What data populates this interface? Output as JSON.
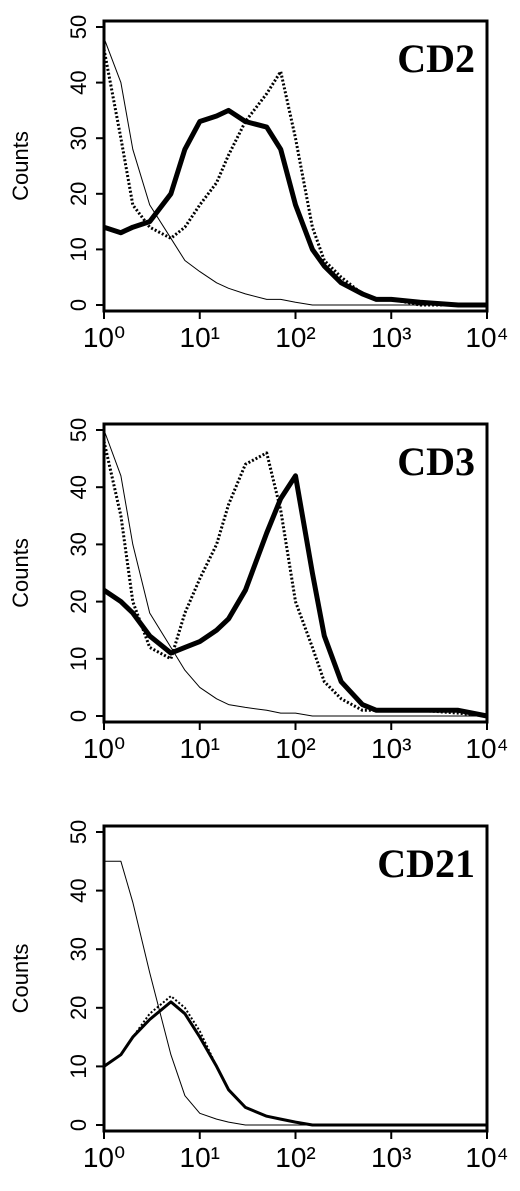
{
  "chart_data": [
    {
      "type": "line",
      "title": "CD2",
      "ylabel": "Counts",
      "xscale": "log",
      "xlim": [
        1,
        10000
      ],
      "ylim": [
        0,
        50
      ],
      "xticks": [
        {
          "value": 1,
          "label": "10⁰"
        },
        {
          "value": 10,
          "label": "10¹"
        },
        {
          "value": 100,
          "label": "10²"
        },
        {
          "value": 1000,
          "label": "10³"
        },
        {
          "value": 10000,
          "label": "10⁴"
        }
      ],
      "yticks": [
        0,
        10,
        20,
        30,
        40,
        50
      ],
      "x": [
        1,
        1.5,
        2,
        3,
        5,
        7,
        10,
        15,
        20,
        30,
        50,
        70,
        100,
        150,
        200,
        300,
        500,
        700,
        1000,
        2000,
        5000,
        10000
      ],
      "series": [
        {
          "color": "#000000",
          "linestyle": "solid",
          "linewidth": 1,
          "values": [
            48,
            40,
            28,
            18,
            12,
            8,
            6,
            4,
            3,
            2,
            1,
            1,
            0.5,
            0,
            0,
            0,
            0,
            0,
            0,
            0,
            0,
            0
          ]
        },
        {
          "color": "#000000",
          "linestyle": "solid",
          "linewidth": 5,
          "values": [
            14,
            13,
            14,
            15,
            20,
            28,
            33,
            34,
            35,
            33,
            32,
            28,
            18,
            10,
            7,
            4,
            2,
            1,
            1,
            0.5,
            0,
            0
          ]
        },
        {
          "color": "#000000",
          "linestyle": "dotted",
          "linewidth": 3,
          "values": [
            46,
            30,
            18,
            14,
            12,
            14,
            18,
            22,
            27,
            33,
            38,
            42,
            30,
            14,
            8,
            5,
            2,
            1,
            1,
            0,
            0,
            0
          ]
        }
      ]
    },
    {
      "type": "line",
      "title": "CD3",
      "ylabel": "Counts",
      "xscale": "log",
      "xlim": [
        1,
        10000
      ],
      "ylim": [
        0,
        50
      ],
      "xticks": [
        {
          "value": 1,
          "label": "10⁰"
        },
        {
          "value": 10,
          "label": "10¹"
        },
        {
          "value": 100,
          "label": "10²"
        },
        {
          "value": 1000,
          "label": "10³"
        },
        {
          "value": 10000,
          "label": "10⁴"
        }
      ],
      "yticks": [
        0,
        10,
        20,
        30,
        40,
        50
      ],
      "x": [
        1,
        1.5,
        2,
        3,
        5,
        7,
        10,
        15,
        20,
        30,
        50,
        70,
        100,
        150,
        200,
        300,
        500,
        700,
        1000,
        2000,
        5000,
        10000
      ],
      "series": [
        {
          "color": "#000000",
          "linestyle": "solid",
          "linewidth": 1,
          "values": [
            50,
            42,
            30,
            18,
            12,
            8,
            5,
            3,
            2,
            1.5,
            1,
            0.5,
            0.5,
            0,
            0,
            0,
            0,
            0,
            0,
            0,
            0,
            0
          ]
        },
        {
          "color": "#000000",
          "linestyle": "solid",
          "linewidth": 5,
          "values": [
            22,
            20,
            18,
            14,
            11,
            12,
            13,
            15,
            17,
            22,
            32,
            38,
            42,
            25,
            14,
            6,
            2,
            1,
            1,
            1,
            1,
            0
          ]
        },
        {
          "color": "#000000",
          "linestyle": "dotted",
          "linewidth": 3,
          "values": [
            48,
            35,
            20,
            12,
            10,
            18,
            24,
            30,
            37,
            44,
            46,
            36,
            20,
            12,
            6,
            3,
            1,
            1,
            1,
            1,
            0.5,
            0
          ]
        }
      ]
    },
    {
      "type": "line",
      "title": "CD21",
      "ylabel": "Counts",
      "xscale": "log",
      "xlim": [
        1,
        10000
      ],
      "ylim": [
        0,
        50
      ],
      "xticks": [
        {
          "value": 1,
          "label": "10⁰"
        },
        {
          "value": 10,
          "label": "10¹"
        },
        {
          "value": 100,
          "label": "10²"
        },
        {
          "value": 1000,
          "label": "10³"
        },
        {
          "value": 10000,
          "label": "10⁴"
        }
      ],
      "yticks": [
        0,
        10,
        20,
        30,
        40,
        50
      ],
      "x": [
        1,
        1.5,
        2,
        3,
        5,
        7,
        10,
        15,
        20,
        30,
        50,
        70,
        100,
        150,
        200,
        300,
        500,
        700,
        1000,
        2000,
        5000,
        10000
      ],
      "series": [
        {
          "color": "#000000",
          "linestyle": "solid",
          "linewidth": 1,
          "values": [
            45,
            45,
            38,
            26,
            12,
            5,
            2,
            1,
            0.5,
            0,
            0,
            0,
            0,
            0,
            0,
            0,
            0,
            0,
            0,
            0,
            0,
            0
          ]
        },
        {
          "color": "#000000",
          "linestyle": "solid",
          "linewidth": 3,
          "values": [
            10,
            12,
            15,
            18,
            21,
            19,
            15,
            10,
            6,
            3,
            1.5,
            1,
            0.5,
            0,
            0,
            0,
            0,
            0,
            0,
            0,
            0,
            0
          ]
        },
        {
          "color": "#000000",
          "linestyle": "dotted",
          "linewidth": 2,
          "values": [
            10,
            12,
            15,
            19,
            22,
            20,
            16,
            10,
            6,
            3,
            1.5,
            1,
            0.5,
            0,
            0,
            0,
            0,
            0,
            0,
            0,
            0,
            0
          ]
        }
      ]
    }
  ]
}
